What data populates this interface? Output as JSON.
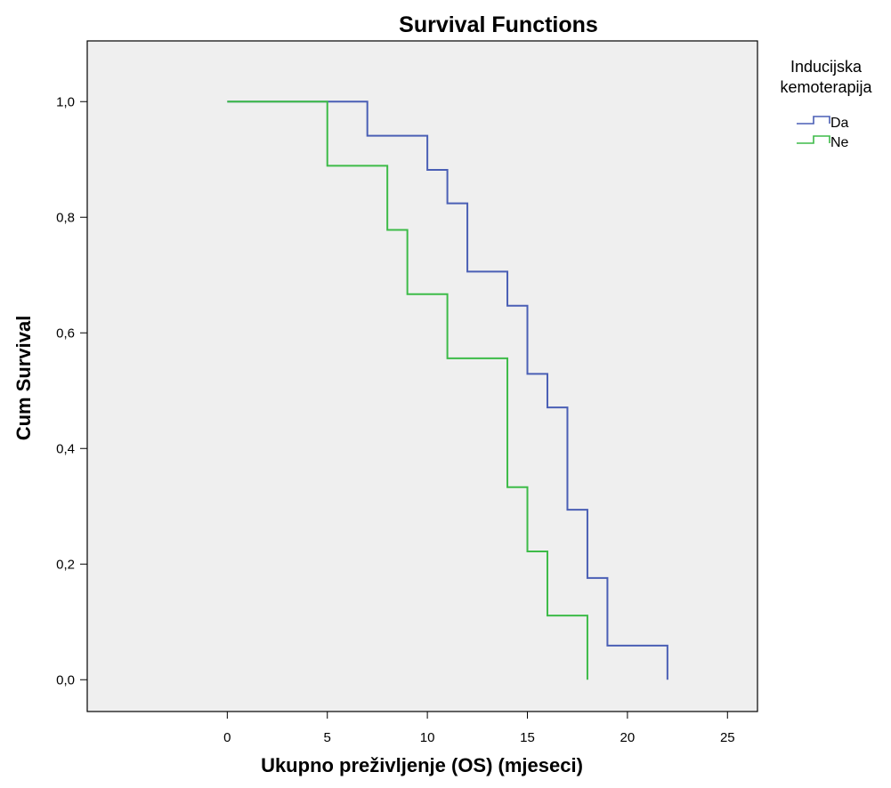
{
  "chart_data": {
    "type": "line",
    "step": true,
    "title": "Survival Functions",
    "xlabel": "Ukupno preživljenje (OS) (mjeseci)",
    "ylabel": "Cum Survival",
    "xlim": [
      -7,
      26.5
    ],
    "ylim": [
      -0.055,
      1.105
    ],
    "xticks": [
      0,
      5,
      10,
      15,
      20,
      25
    ],
    "xtick_labels": [
      "0",
      "5",
      "10",
      "15",
      "20",
      "25"
    ],
    "yticks": [
      0,
      0.2,
      0.4,
      0.6,
      0.8,
      1.0
    ],
    "ytick_labels": [
      "0,0",
      "0,2",
      "0,4",
      "0,6",
      "0,8",
      "1,0"
    ],
    "grid": false,
    "background": "#efefef",
    "legend": {
      "title_lines": [
        "Inducijska",
        "kemoterapija"
      ],
      "placement": "right"
    },
    "series": [
      {
        "name": "Da",
        "color": "#4a5fb5",
        "x": [
          0,
          7,
          10,
          11,
          12,
          14,
          15,
          16,
          17,
          18,
          19,
          22
        ],
        "y": [
          1.0,
          0.941,
          0.882,
          0.824,
          0.706,
          0.647,
          0.529,
          0.471,
          0.294,
          0.176,
          0.059,
          0.0
        ]
      },
      {
        "name": "Ne",
        "color": "#3dbb48",
        "x": [
          0,
          5,
          8,
          9,
          11,
          14,
          15,
          16,
          18
        ],
        "y": [
          1.0,
          0.889,
          0.778,
          0.667,
          0.556,
          0.333,
          0.222,
          0.111,
          0.0
        ]
      }
    ]
  }
}
